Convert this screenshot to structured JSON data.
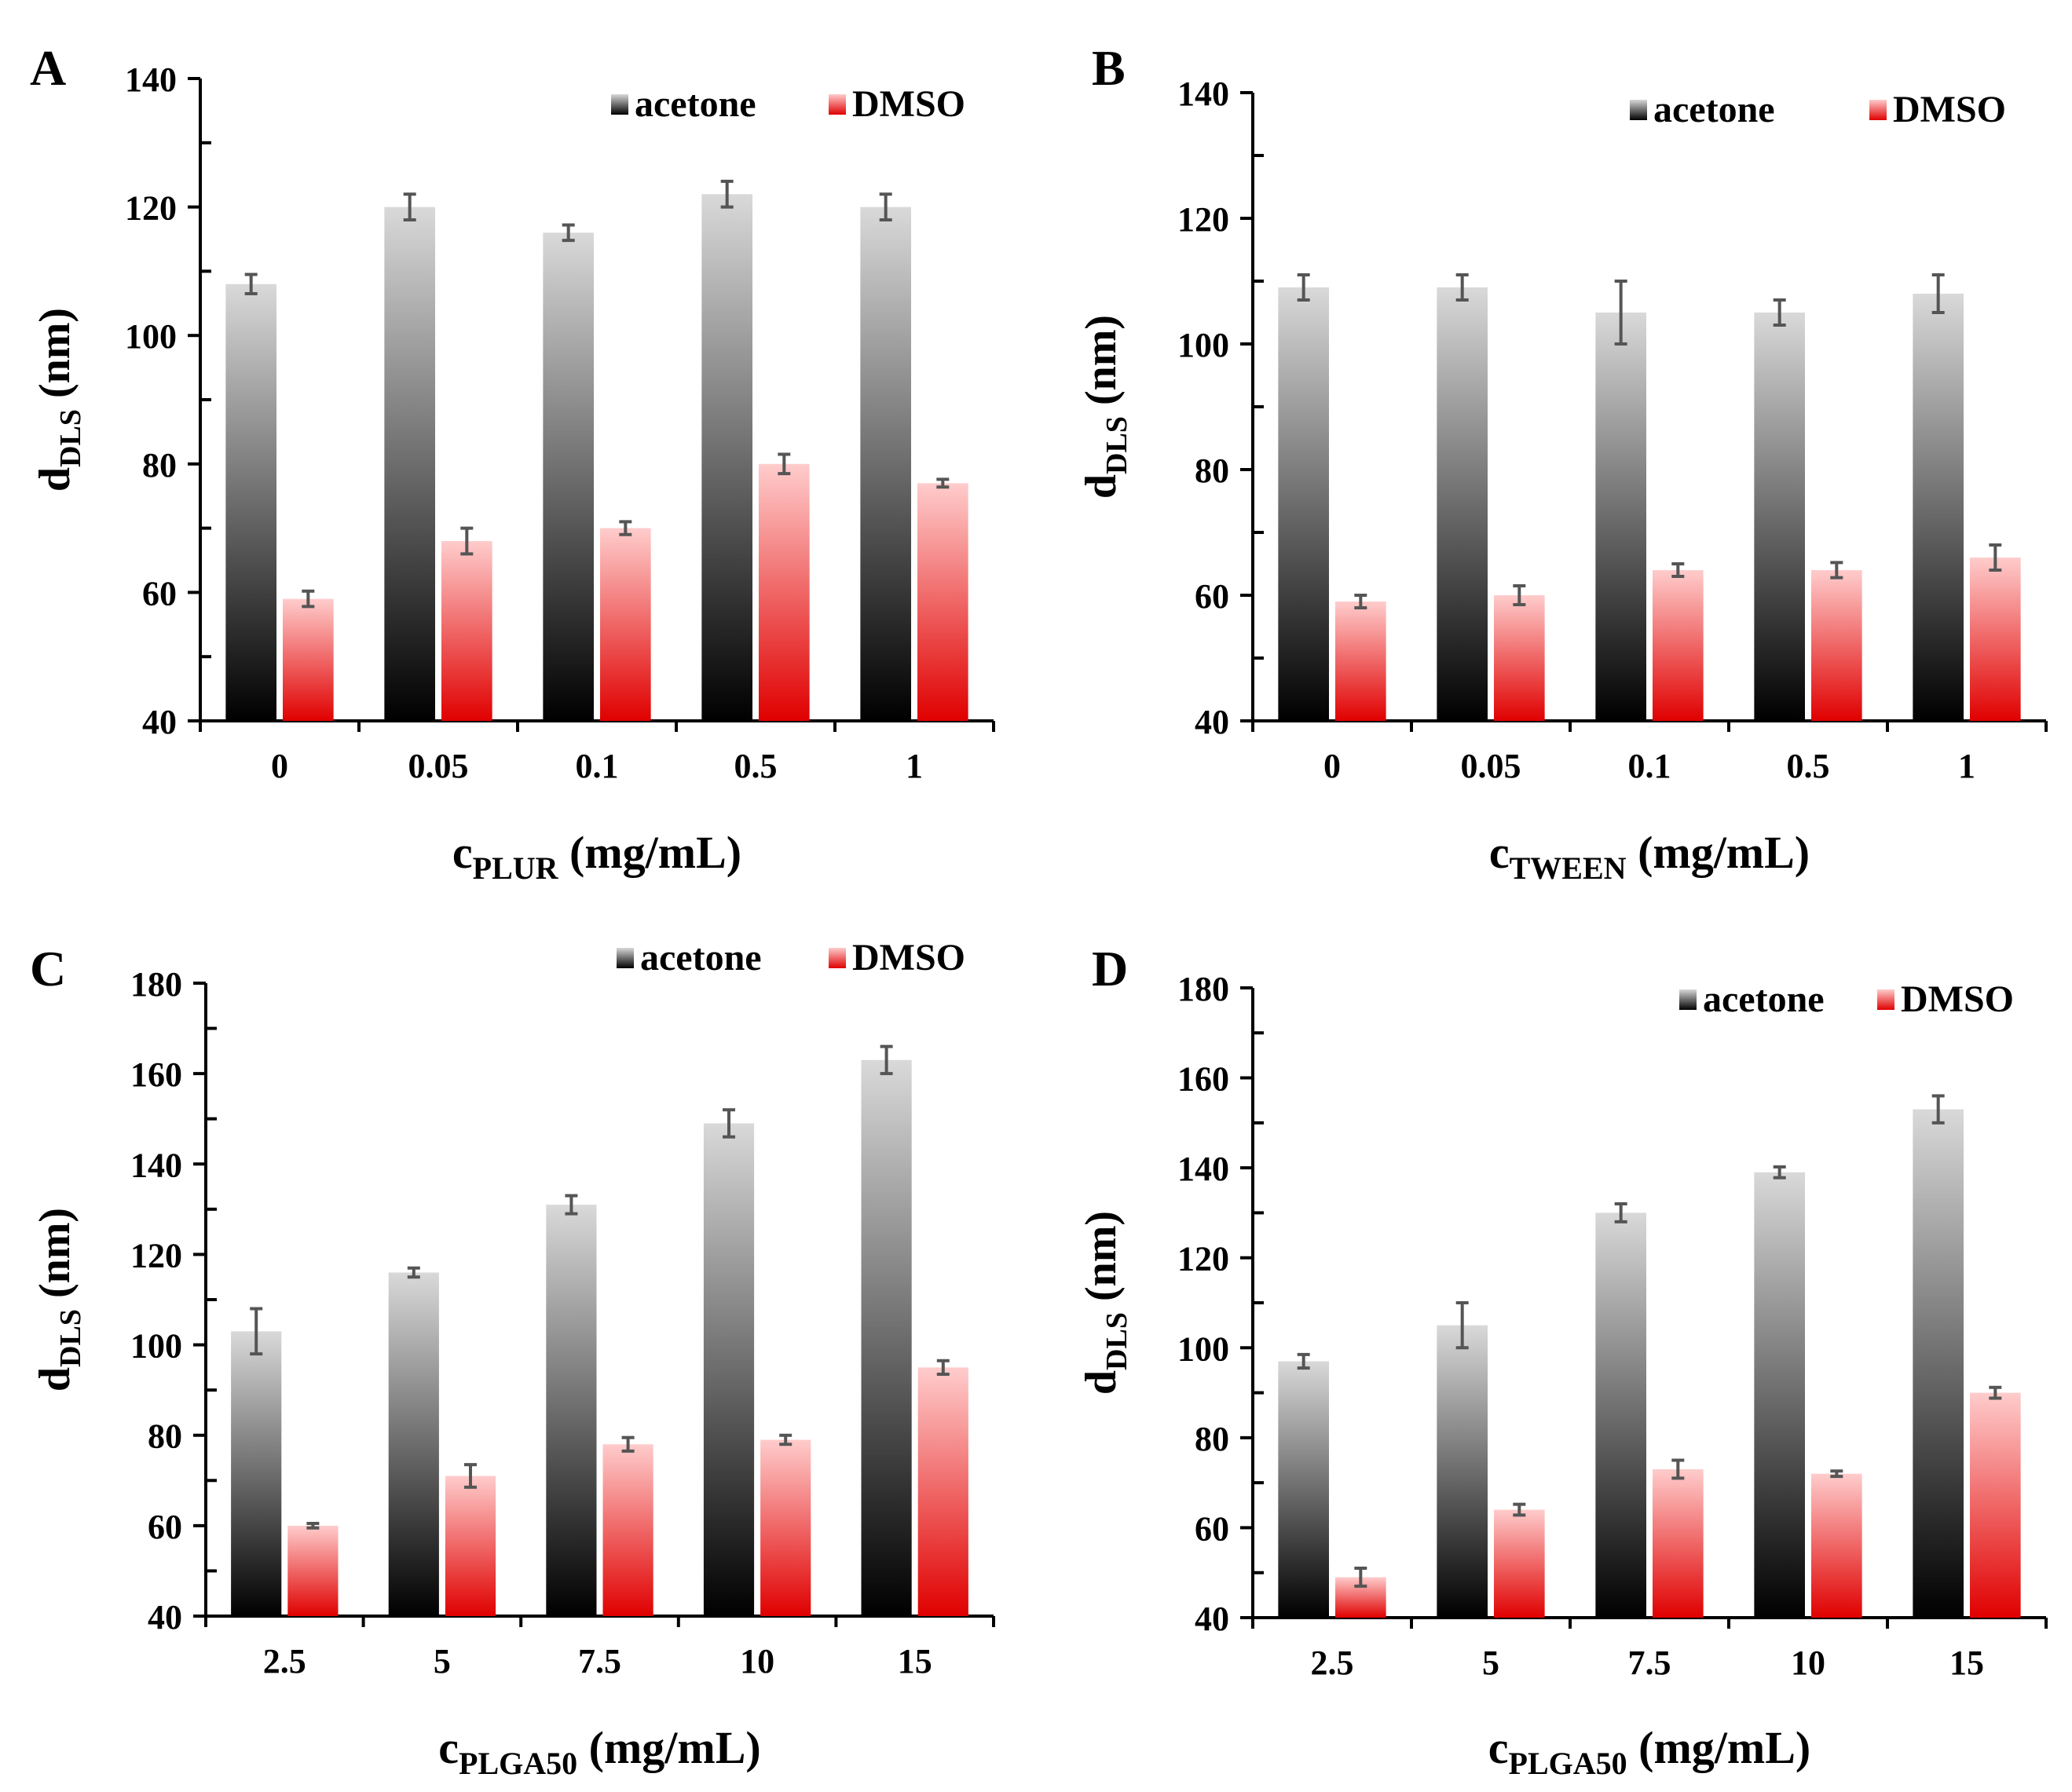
{
  "legend_series": [
    "acetone",
    "DMSO"
  ],
  "colors": {
    "acetone_light": "#d9d9d9",
    "acetone_dark": "#000000",
    "dmso_light": "#ffcccc",
    "dmso_dark": "#e00000",
    "errorbar": "#555555"
  },
  "chart_data": [
    {
      "type": "bar",
      "panel_label": "A",
      "categories": [
        "0",
        "0.05",
        "0.1",
        "0.5",
        "1"
      ],
      "series": [
        {
          "name": "acetone",
          "values": [
            108,
            120,
            116,
            122,
            120
          ],
          "errors": [
            1.5,
            2,
            1.2,
            2,
            2
          ]
        },
        {
          "name": "DMSO",
          "values": [
            59,
            68,
            70,
            80,
            77
          ],
          "errors": [
            1.2,
            2,
            1,
            1.5,
            0.6
          ]
        }
      ],
      "ylabel": "d",
      "ylabel_sub": "DLS",
      "ylabel_unit": " (nm)",
      "xlabel": "c",
      "xlabel_sub": "PLUR",
      "xlabel_unit": " (mg/mL)",
      "ylim": [
        40,
        140
      ],
      "ystep": 20,
      "yticks": [
        "40",
        "60",
        "80",
        "100",
        "120",
        "140"
      ],
      "legend_position": "top-right",
      "grid": false
    },
    {
      "type": "bar",
      "panel_label": "B",
      "categories": [
        "0",
        "0.05",
        "0.1",
        "0.5",
        "1"
      ],
      "series": [
        {
          "name": "acetone",
          "values": [
            109,
            109,
            105,
            105,
            108
          ],
          "errors": [
            2,
            2,
            5,
            2,
            3
          ]
        },
        {
          "name": "DMSO",
          "values": [
            59,
            60,
            64,
            64,
            66
          ],
          "errors": [
            1,
            1.5,
            1,
            1.2,
            2
          ]
        }
      ],
      "ylabel": "d",
      "ylabel_sub": "DLS",
      "ylabel_unit": " (nm)",
      "xlabel": "c",
      "xlabel_sub": "TWEEN",
      "xlabel_unit": " (mg/mL)",
      "ylim": [
        40,
        140
      ],
      "ystep": 20,
      "yticks": [
        "40",
        "60",
        "80",
        "100",
        "120",
        "140"
      ],
      "legend_position": "top-right",
      "grid": false
    },
    {
      "type": "bar",
      "panel_label": "C",
      "categories": [
        "2.5",
        "5",
        "7.5",
        "10",
        "15"
      ],
      "series": [
        {
          "name": "acetone",
          "values": [
            103,
            116,
            131,
            149,
            163
          ],
          "errors": [
            5,
            1,
            2,
            3,
            3
          ]
        },
        {
          "name": "DMSO",
          "values": [
            60,
            71,
            78,
            79,
            95
          ],
          "errors": [
            0.5,
            2.5,
            1.5,
            1,
            1.5
          ]
        }
      ],
      "ylabel": "d",
      "ylabel_sub": "DLS",
      "ylabel_unit": " (nm)",
      "xlabel": "c",
      "xlabel_sub": "PLGA50",
      "xlabel_unit": " (mg/mL)",
      "ylim": [
        40,
        180
      ],
      "ystep": 20,
      "yticks": [
        "40",
        "60",
        "80",
        "100",
        "120",
        "140",
        "160",
        "180"
      ],
      "legend_position": "top-right",
      "grid": false
    },
    {
      "type": "bar",
      "panel_label": "D",
      "categories": [
        "2.5",
        "5",
        "7.5",
        "10",
        "15"
      ],
      "series": [
        {
          "name": "acetone",
          "values": [
            97,
            105,
            130,
            139,
            153
          ],
          "errors": [
            1.5,
            5,
            2,
            1.2,
            3
          ]
        },
        {
          "name": "DMSO",
          "values": [
            49,
            64,
            73,
            72,
            90
          ],
          "errors": [
            2,
            1.2,
            2,
            0.6,
            1.2
          ]
        }
      ],
      "ylabel": "d",
      "ylabel_sub": "DLS",
      "ylabel_unit": " (nm)",
      "xlabel": "c",
      "xlabel_sub": "PLGA50",
      "xlabel_unit": " (mg/mL)",
      "ylim": [
        40,
        180
      ],
      "ystep": 20,
      "yticks": [
        "40",
        "60",
        "80",
        "100",
        "120",
        "140",
        "160",
        "180"
      ],
      "legend_position": "top-right",
      "grid": false
    }
  ]
}
